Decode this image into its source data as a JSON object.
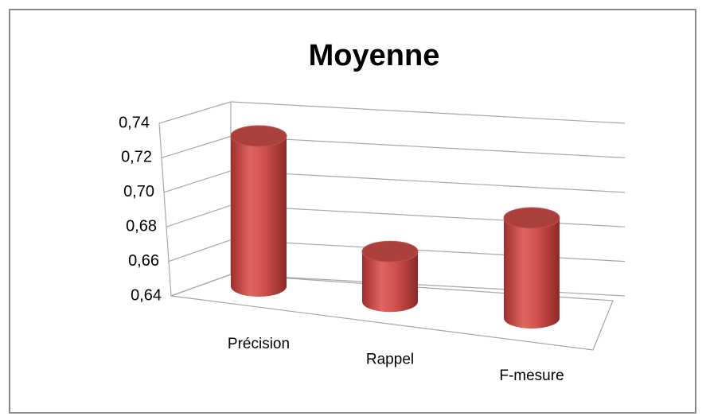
{
  "chart_data": {
    "type": "bar3d",
    "title": "Moyenne",
    "categories": [
      "Précision",
      "Rappel",
      "F-mesure"
    ],
    "values": [
      0.73,
      0.67,
      0.7
    ],
    "color": "#c0504d",
    "ylim": [
      0.64,
      0.74
    ],
    "yticks": [
      {
        "value": 0.64,
        "label": "0,64"
      },
      {
        "value": 0.66,
        "label": "0,66"
      },
      {
        "value": 0.68,
        "label": "0,68"
      },
      {
        "value": 0.7,
        "label": "0,70"
      },
      {
        "value": 0.72,
        "label": "0,72"
      },
      {
        "value": 0.74,
        "label": "0,74"
      }
    ],
    "grid": true
  }
}
